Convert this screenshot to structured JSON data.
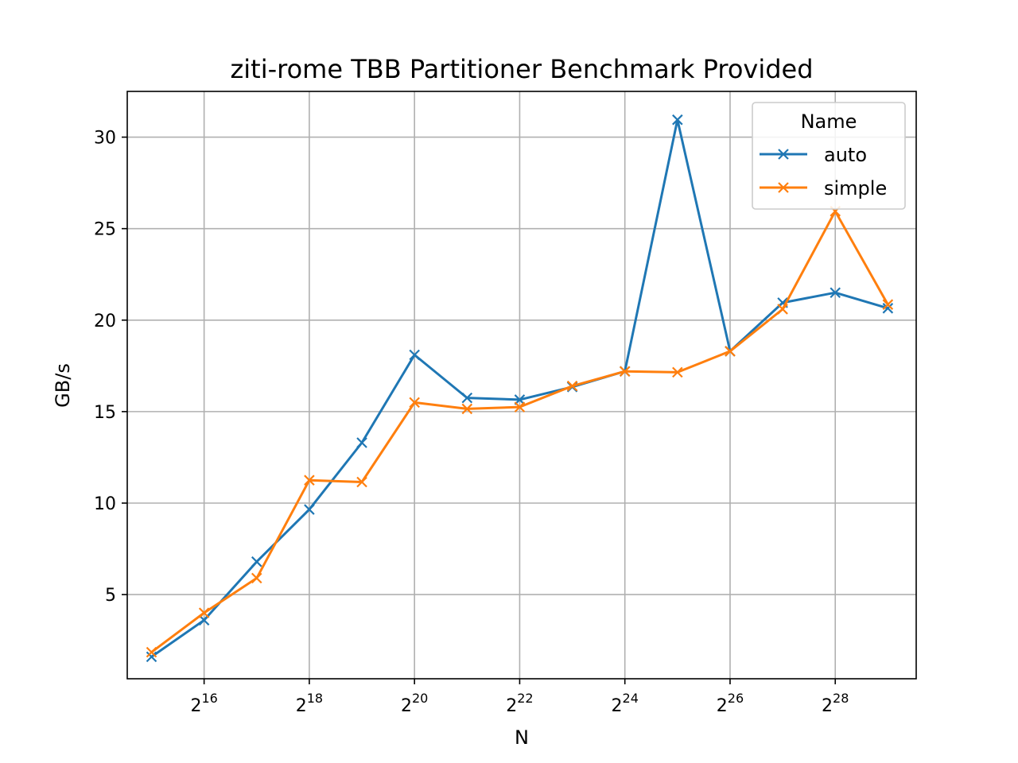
{
  "chart_data": {
    "type": "line",
    "title": "ziti-rome TBB Partitioner Benchmark Provided",
    "xlabel": "N",
    "ylabel": "GB/s",
    "x_scale": "log2",
    "x": [
      32768,
      65536,
      131072,
      262144,
      524288,
      1048576,
      2097152,
      4194304,
      8388608,
      16777216,
      33554432,
      67108864,
      134217728,
      268435456,
      536870912
    ],
    "xlim": [
      23800,
      780000000
    ],
    "ylim": [
      0.4,
      32.5
    ],
    "x_ticks": [
      {
        "base": "2",
        "exp": "16",
        "value": 65536
      },
      {
        "base": "2",
        "exp": "18",
        "value": 262144
      },
      {
        "base": "2",
        "exp": "20",
        "value": 1048576
      },
      {
        "base": "2",
        "exp": "22",
        "value": 4194304
      },
      {
        "base": "2",
        "exp": "24",
        "value": 16777216
      },
      {
        "base": "2",
        "exp": "26",
        "value": 67108864
      },
      {
        "base": "2",
        "exp": "28",
        "value": 268435456
      }
    ],
    "y_ticks": [
      "5",
      "10",
      "15",
      "20",
      "25",
      "30"
    ],
    "y_tick_values": [
      5,
      10,
      15,
      20,
      25,
      30
    ],
    "grid": true,
    "legend": {
      "title": "Name",
      "placement": "top-right"
    },
    "series": [
      {
        "name": "auto",
        "color": "#1f77b4",
        "marker": "x",
        "values": [
          1.6,
          3.6,
          6.8,
          9.65,
          13.3,
          18.1,
          15.75,
          15.65,
          16.35,
          17.2,
          30.95,
          18.3,
          20.95,
          21.5,
          20.65
        ]
      },
      {
        "name": "simple",
        "color": "#ff7f0e",
        "marker": "x",
        "values": [
          1.85,
          4.0,
          5.9,
          11.25,
          11.15,
          15.5,
          15.15,
          15.25,
          16.4,
          17.2,
          17.15,
          18.3,
          20.6,
          25.95,
          20.85
        ]
      }
    ]
  }
}
